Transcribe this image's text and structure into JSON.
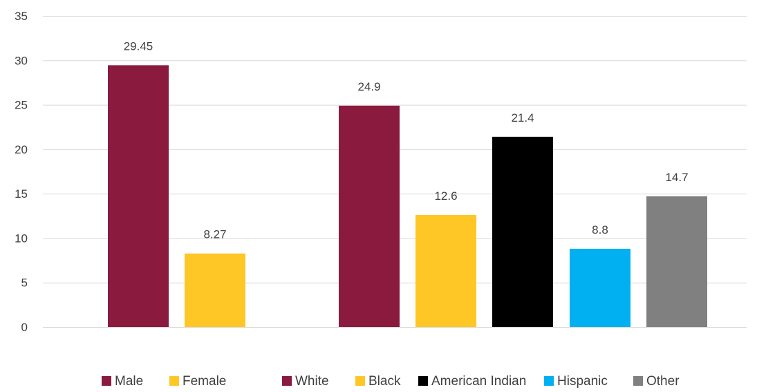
{
  "chart_data": {
    "type": "bar",
    "title": "",
    "xlabel": "",
    "ylabel": "",
    "ylim": [
      0,
      35
    ],
    "yticks": [
      0,
      5,
      10,
      15,
      20,
      25,
      30,
      35
    ],
    "grid": true,
    "legend_position": "bottom",
    "bars": [
      {
        "label": "Male",
        "value": 29.45,
        "value_label": "29.45",
        "color": "#8B1A3F"
      },
      {
        "label": "Female",
        "value": 8.27,
        "value_label": "8.27",
        "color": "#FFC726"
      },
      {
        "label": "White",
        "value": 24.9,
        "value_label": "24.9",
        "color": "#8B1A3F"
      },
      {
        "label": "Black",
        "value": 12.6,
        "value_label": "12.6",
        "color": "#FFC726"
      },
      {
        "label": "American Indian",
        "value": 21.4,
        "value_label": "21.4",
        "color": "#000000"
      },
      {
        "label": "Hispanic",
        "value": 8.8,
        "value_label": "8.8",
        "color": "#00B0F0"
      },
      {
        "label": "Other",
        "value": 14.7,
        "value_label": "14.7",
        "color": "#808080"
      }
    ],
    "legend": [
      {
        "label": "Male",
        "color": "#8B1A3F"
      },
      {
        "label": "Female",
        "color": "#FFC726"
      },
      {
        "label": "White",
        "color": "#8B1A3F"
      },
      {
        "label": "Black",
        "color": "#FFC726"
      },
      {
        "label": "American Indian",
        "color": "#000000"
      },
      {
        "label": "Hispanic",
        "color": "#00B0F0"
      },
      {
        "label": "Other",
        "color": "#808080"
      }
    ]
  }
}
